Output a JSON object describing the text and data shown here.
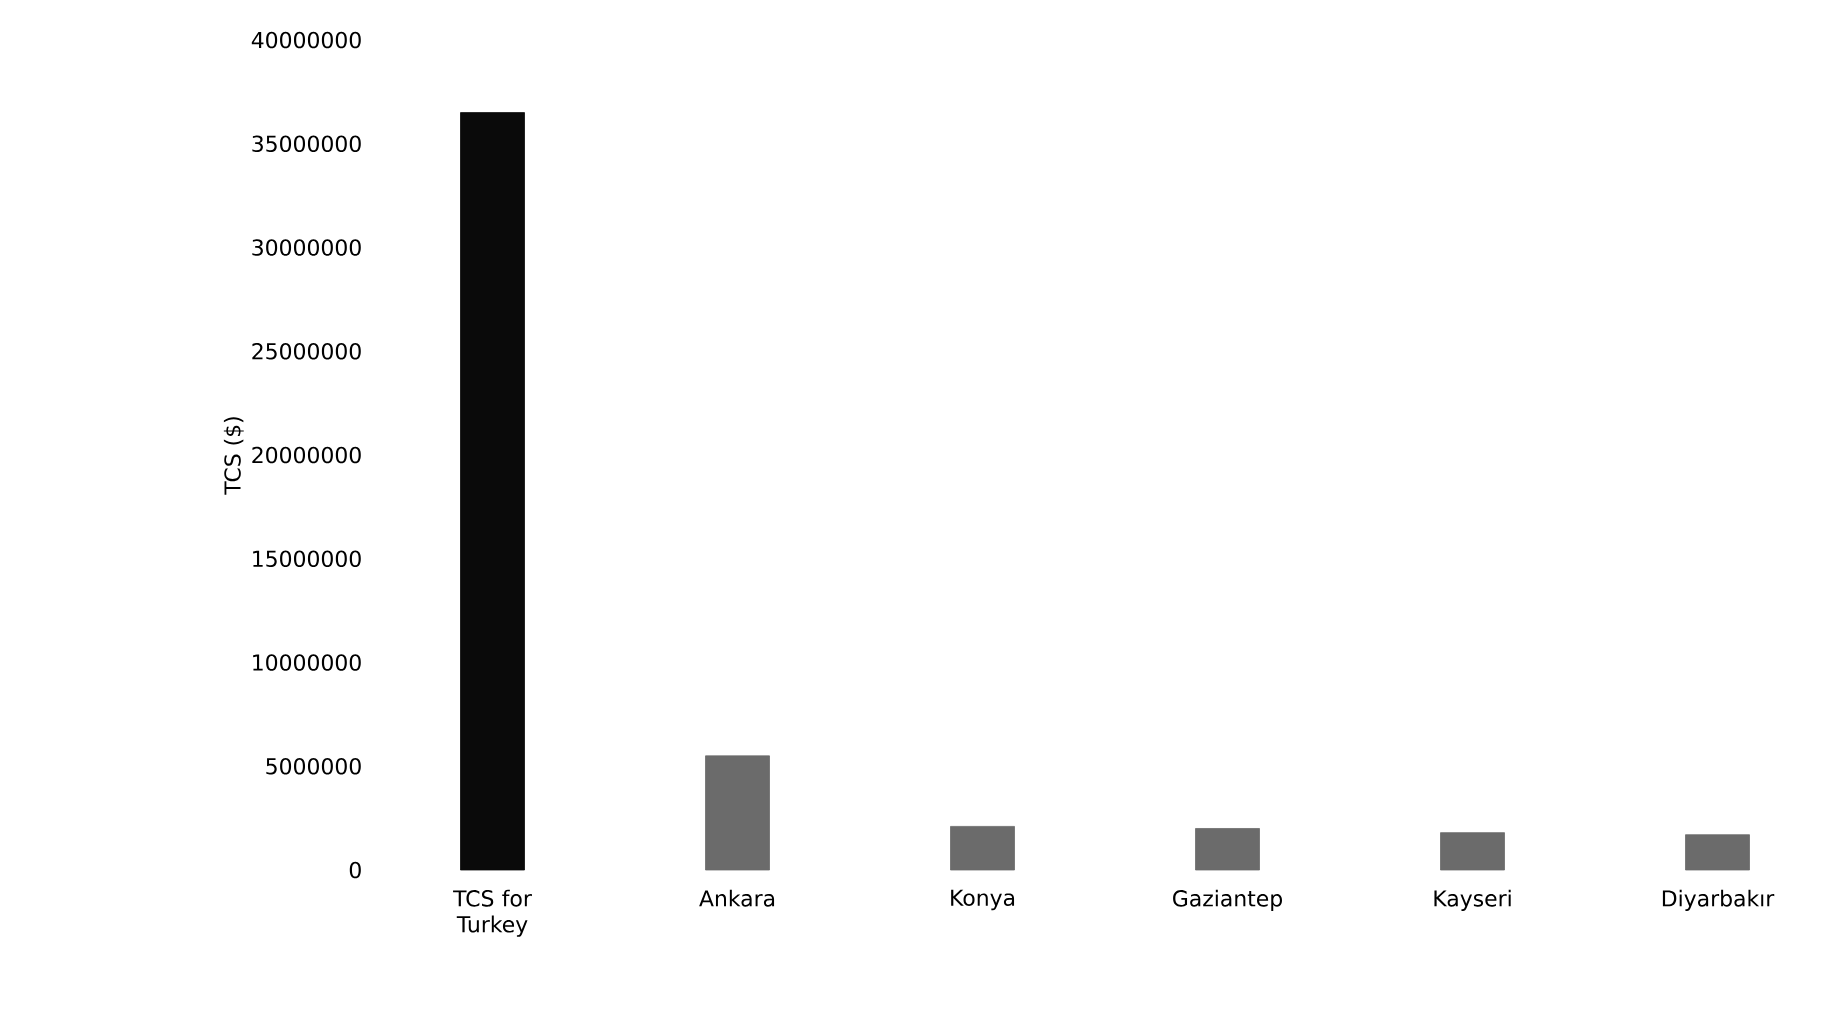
{
  "chart_data": {
    "type": "bar",
    "ylabel": "TCS ($)",
    "categories": [
      "TCS for Turkey",
      "Ankara",
      "Konya",
      "Gaziantep",
      "Kayseri",
      "Diyarbakır"
    ],
    "values": [
      36500000,
      5500000,
      2100000,
      2000000,
      1800000,
      1700000
    ],
    "colors": [
      "#0a0a0a",
      "#6b6b6b",
      "#6b6b6b",
      "#6b6b6b",
      "#6b6b6b",
      "#6b6b6b"
    ],
    "ylim": [
      0,
      40000000
    ],
    "yticks": [
      0,
      5000000,
      10000000,
      15000000,
      20000000,
      25000000,
      30000000,
      35000000,
      40000000
    ]
  }
}
